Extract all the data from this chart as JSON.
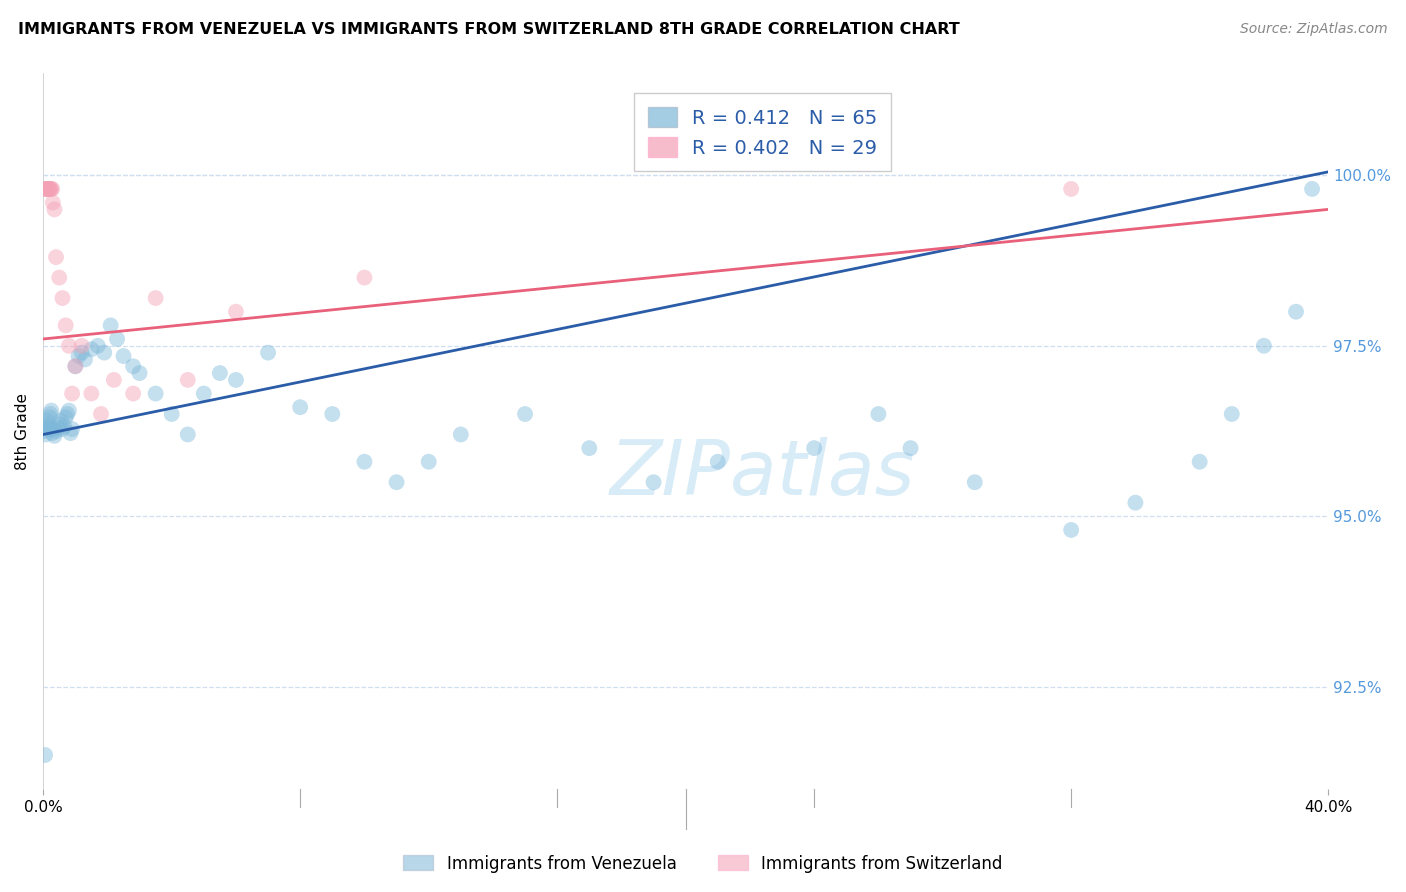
{
  "title": "IMMIGRANTS FROM VENEZUELA VS IMMIGRANTS FROM SWITZERLAND 8TH GRADE CORRELATION CHART",
  "source": "Source: ZipAtlas.com",
  "ylabel": "8th Grade",
  "xlim": [
    0.0,
    40.0
  ],
  "ylim": [
    91.0,
    101.5
  ],
  "yticks": [
    92.5,
    95.0,
    97.5,
    100.0
  ],
  "ytick_labels": [
    "92.5%",
    "95.0%",
    "97.5%",
    "100.0%"
  ],
  "venezuela_color": "#7EB8D9",
  "switzerland_color": "#F4A0B5",
  "trendline_blue": "#2B5CA8",
  "trendline_pink": "#E8607A",
  "grid_color": "#D0DFF0",
  "watermark_color": "#D8ECF8",
  "venezuela_R": 0.412,
  "venezuela_N": 65,
  "switzerland_R": 0.402,
  "switzerland_N": 29,
  "ven_trend_x0": 0,
  "ven_trend_y0": 96.2,
  "ven_trend_x1": 40,
  "ven_trend_y1": 100.05,
  "swi_trend_x0": 0,
  "swi_trend_y0": 97.6,
  "swi_trend_x1": 40,
  "swi_trend_y1": 99.5,
  "venezuela_x": [
    0.05,
    0.07,
    0.08,
    0.1,
    0.12,
    0.15,
    0.18,
    0.2,
    0.22,
    0.25,
    0.28,
    0.3,
    0.35,
    0.4,
    0.45,
    0.5,
    0.55,
    0.6,
    0.65,
    0.7,
    0.75,
    0.8,
    0.85,
    0.9,
    1.0,
    1.1,
    1.2,
    1.3,
    1.5,
    1.7,
    1.9,
    2.1,
    2.3,
    2.5,
    2.8,
    3.0,
    3.5,
    4.0,
    4.5,
    5.0,
    5.5,
    6.0,
    7.0,
    8.0,
    9.0,
    10.0,
    11.0,
    12.0,
    13.0,
    15.0,
    17.0,
    19.0,
    21.0,
    24.0,
    26.0,
    27.0,
    29.0,
    32.0,
    34.0,
    36.0,
    37.0,
    38.0,
    39.0,
    39.5,
    0.06
  ],
  "venezuela_y": [
    96.25,
    96.3,
    96.2,
    96.35,
    96.4,
    96.28,
    96.32,
    96.45,
    96.5,
    96.55,
    96.22,
    96.28,
    96.18,
    96.25,
    96.3,
    96.35,
    96.4,
    96.28,
    96.32,
    96.45,
    96.5,
    96.55,
    96.22,
    96.28,
    97.2,
    97.35,
    97.4,
    97.3,
    97.45,
    97.5,
    97.4,
    97.8,
    97.6,
    97.35,
    97.2,
    97.1,
    96.8,
    96.5,
    96.2,
    96.8,
    97.1,
    97.0,
    97.4,
    96.6,
    96.5,
    95.8,
    95.5,
    95.8,
    96.2,
    96.5,
    96.0,
    95.5,
    95.8,
    96.0,
    96.5,
    96.0,
    95.5,
    94.8,
    95.2,
    95.8,
    96.5,
    97.5,
    98.0,
    99.8,
    91.5
  ],
  "switzerland_x": [
    0.05,
    0.08,
    0.1,
    0.12,
    0.15,
    0.18,
    0.2,
    0.22,
    0.25,
    0.28,
    0.3,
    0.35,
    0.4,
    0.5,
    0.6,
    0.7,
    0.8,
    0.9,
    1.0,
    1.2,
    1.5,
    1.8,
    2.2,
    2.8,
    3.5,
    4.5,
    6.0,
    10.0,
    32.0
  ],
  "switzerland_y": [
    99.8,
    99.8,
    99.8,
    99.8,
    99.8,
    99.8,
    99.8,
    99.8,
    99.8,
    99.8,
    99.6,
    99.5,
    98.8,
    98.5,
    98.2,
    97.8,
    97.5,
    96.8,
    97.2,
    97.5,
    96.8,
    96.5,
    97.0,
    96.8,
    98.2,
    97.0,
    98.0,
    98.5,
    99.8
  ]
}
